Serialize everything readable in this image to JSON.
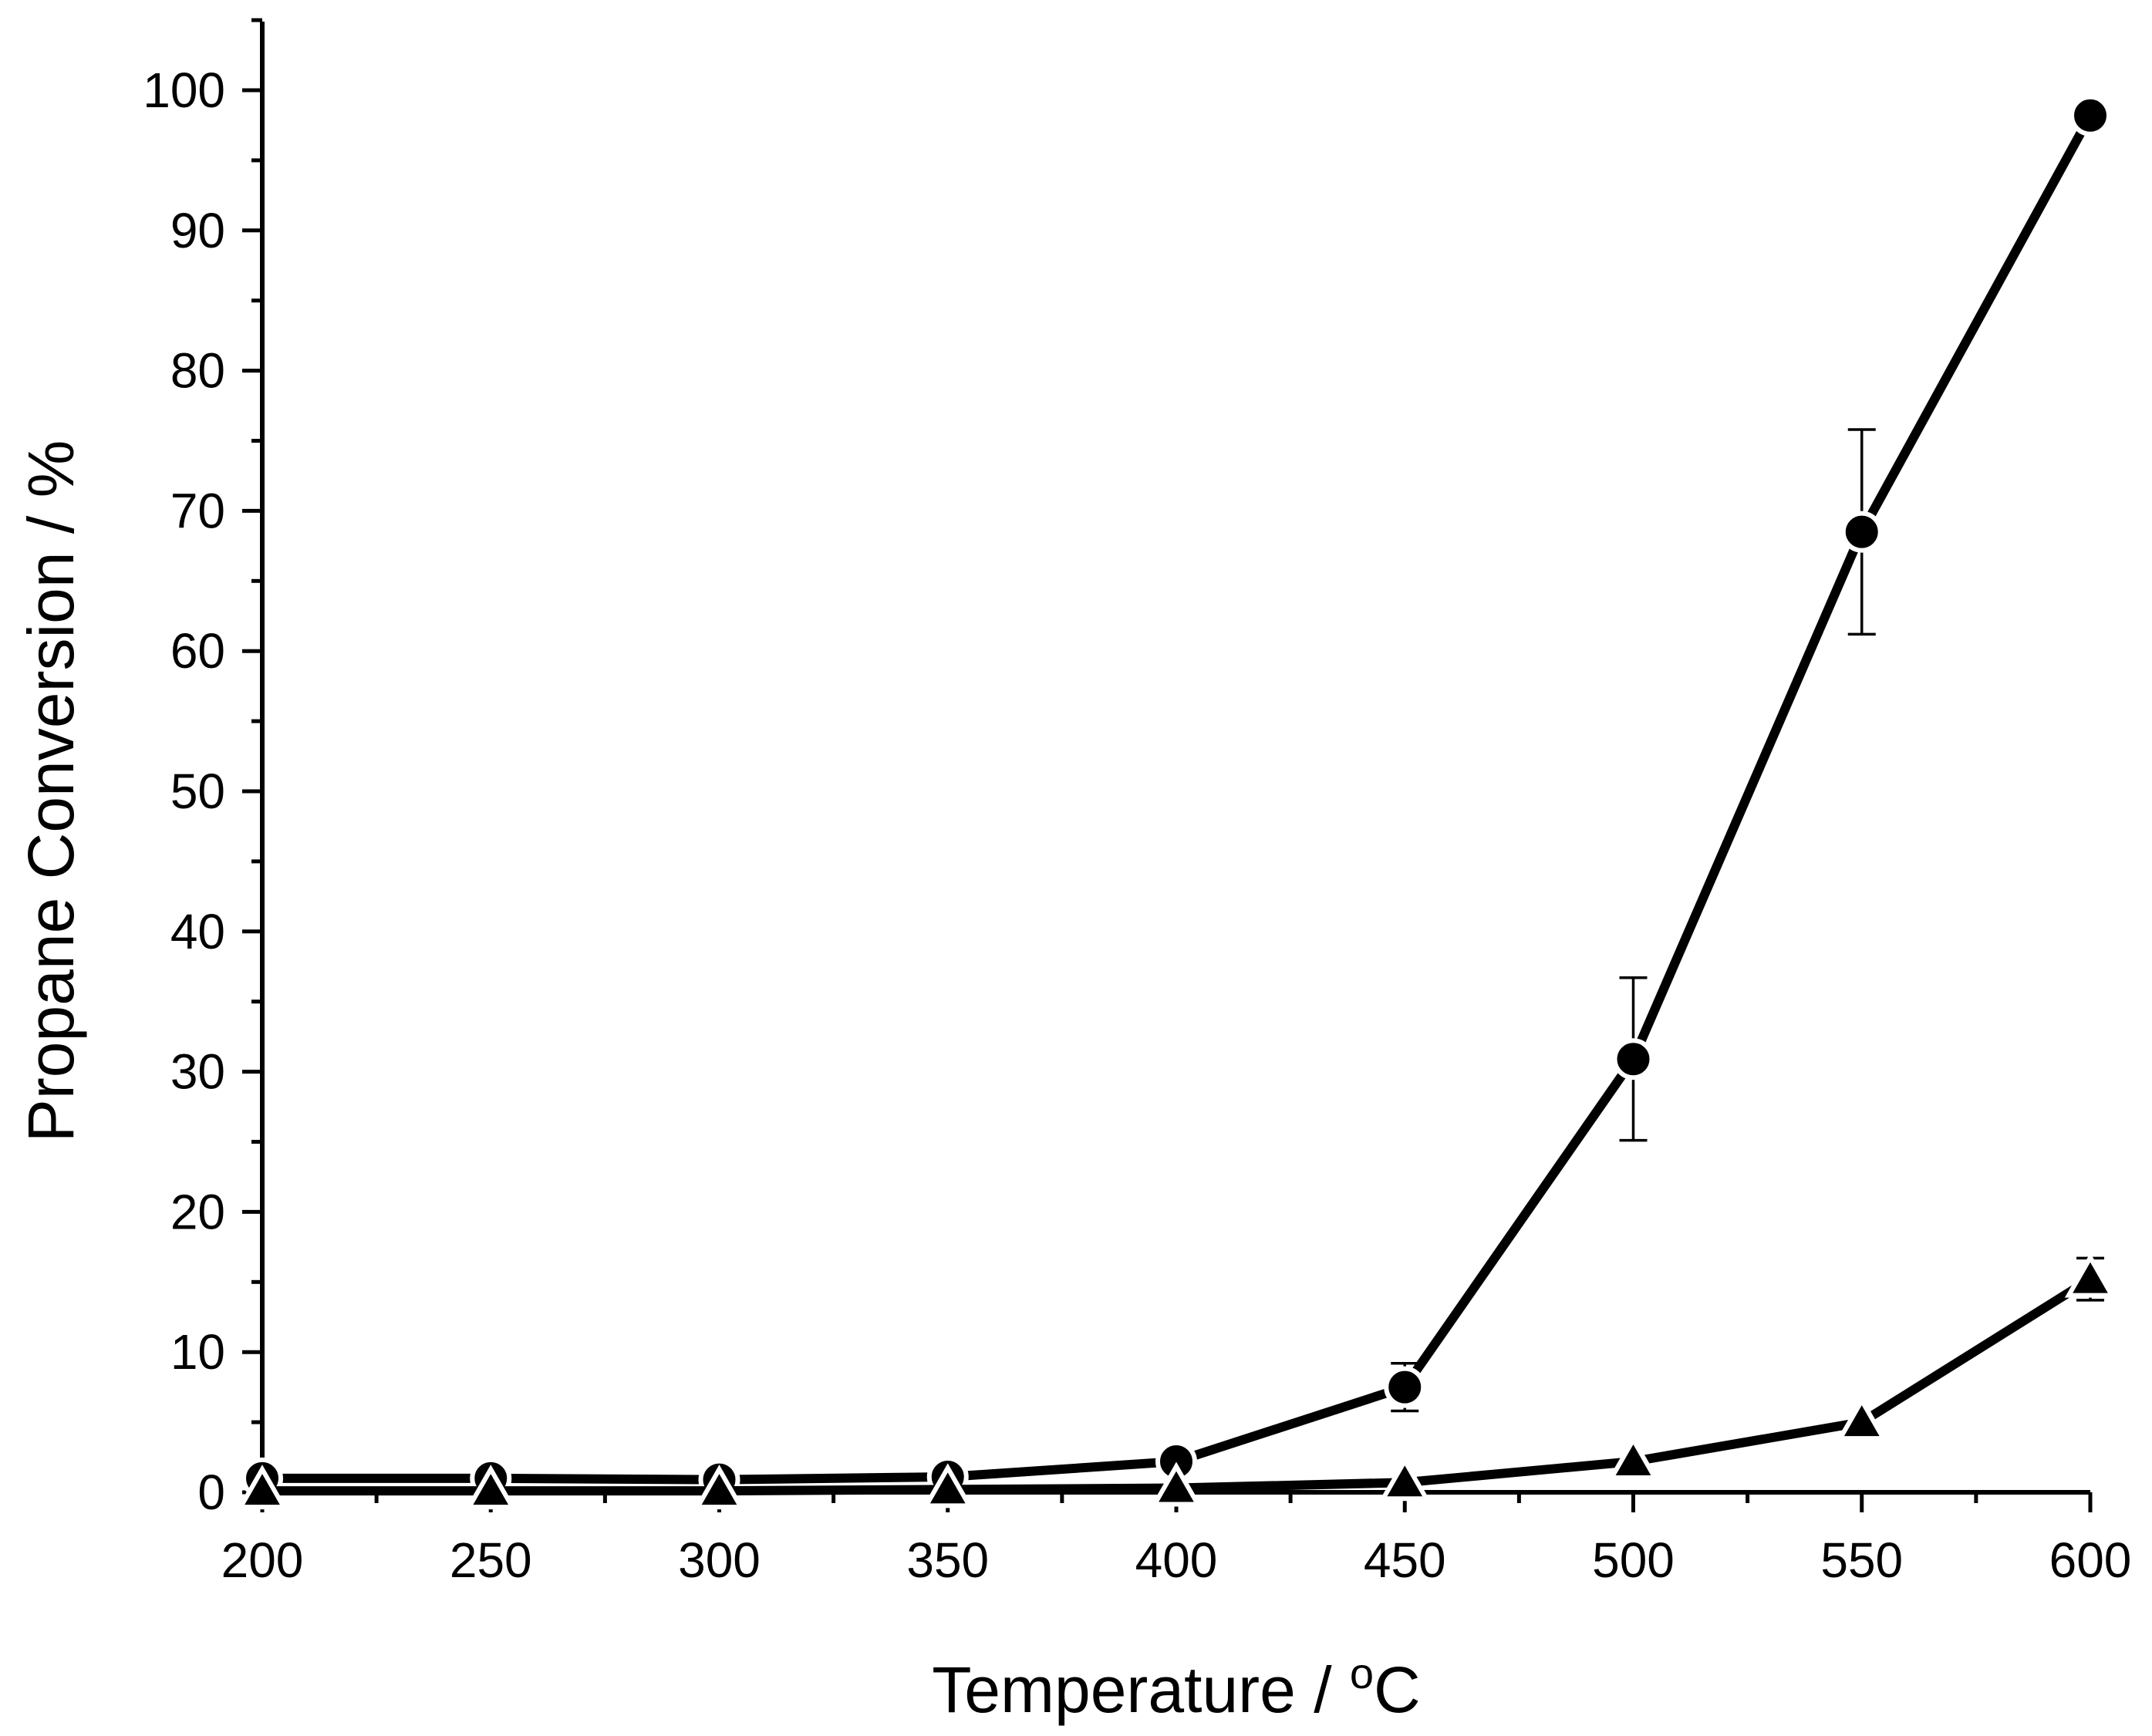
{
  "chart_data": {
    "type": "line",
    "title": "",
    "xlabel": "Temperature / ",
    "xlabel_superscript": "o",
    "xlabel_unit": "C",
    "ylabel": "Propane Conversion / %",
    "xlim": [
      200,
      600
    ],
    "ylim": [
      0,
      105
    ],
    "xticks": [
      200,
      250,
      300,
      350,
      400,
      450,
      500,
      550,
      600
    ],
    "yticks": [
      0,
      10,
      20,
      30,
      40,
      50,
      60,
      70,
      80,
      90,
      100
    ],
    "x": [
      200,
      250,
      300,
      350,
      400,
      450,
      500,
      550,
      600
    ],
    "series": [
      {
        "name": "circles",
        "marker": "circle",
        "values": [
          1.0,
          1.0,
          0.9,
          1.1,
          2.2,
          7.5,
          30.9,
          68.5,
          98.2
        ],
        "error": [
          null,
          null,
          null,
          null,
          null,
          1.7,
          5.8,
          7.3,
          null
        ],
        "color": "#000000"
      },
      {
        "name": "triangles",
        "marker": "triangle",
        "values": [
          0.1,
          0.1,
          0.1,
          0.2,
          0.3,
          0.7,
          2.2,
          5.0,
          15.2
        ],
        "error": [
          null,
          null,
          null,
          null,
          null,
          null,
          null,
          null,
          1.5
        ],
        "color": "#000000"
      }
    ]
  }
}
